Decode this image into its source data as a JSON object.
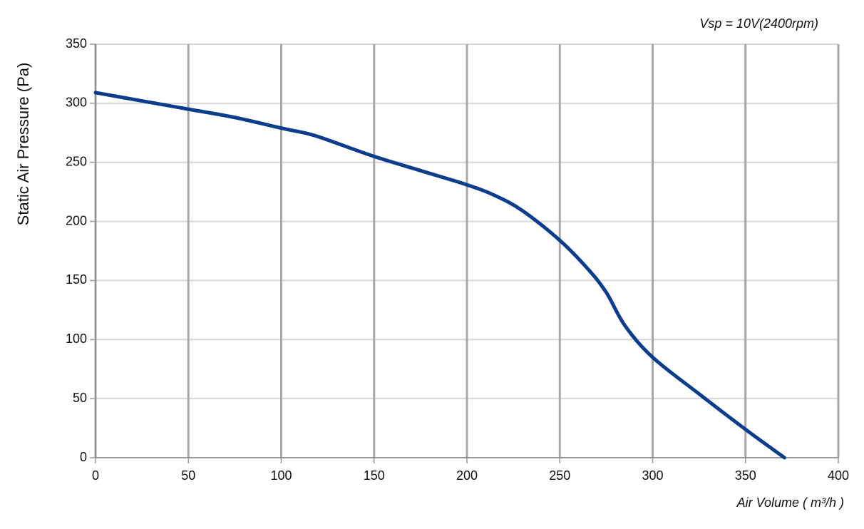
{
  "chart_data": {
    "type": "line",
    "annotation": "Vsp = 10V(2400rpm)",
    "x_label": "Air Volume ( m³/h )",
    "y_label": "Static Air Pressure  (Pa)",
    "series": [
      {
        "name": "Vsp = 10V",
        "color": "#0a3d8c",
        "x": [
          0,
          25,
          50,
          75,
          100,
          115,
          125,
          150,
          175,
          200,
          215,
          230,
          250,
          265,
          275,
          285,
          300,
          325,
          350,
          371
        ],
        "values": [
          309,
          302,
          295,
          288,
          279,
          274,
          269,
          255,
          243,
          231,
          222,
          209,
          184,
          160,
          140,
          112,
          85,
          54,
          24,
          0
        ]
      }
    ],
    "xlim": [
      0,
      400
    ],
    "xticks": [
      0,
      50,
      100,
      150,
      200,
      250,
      300,
      350,
      400
    ],
    "ylim": [
      0,
      350
    ],
    "yticks": [
      0,
      50,
      100,
      150,
      200,
      250,
      300,
      350
    ],
    "grid": true
  }
}
